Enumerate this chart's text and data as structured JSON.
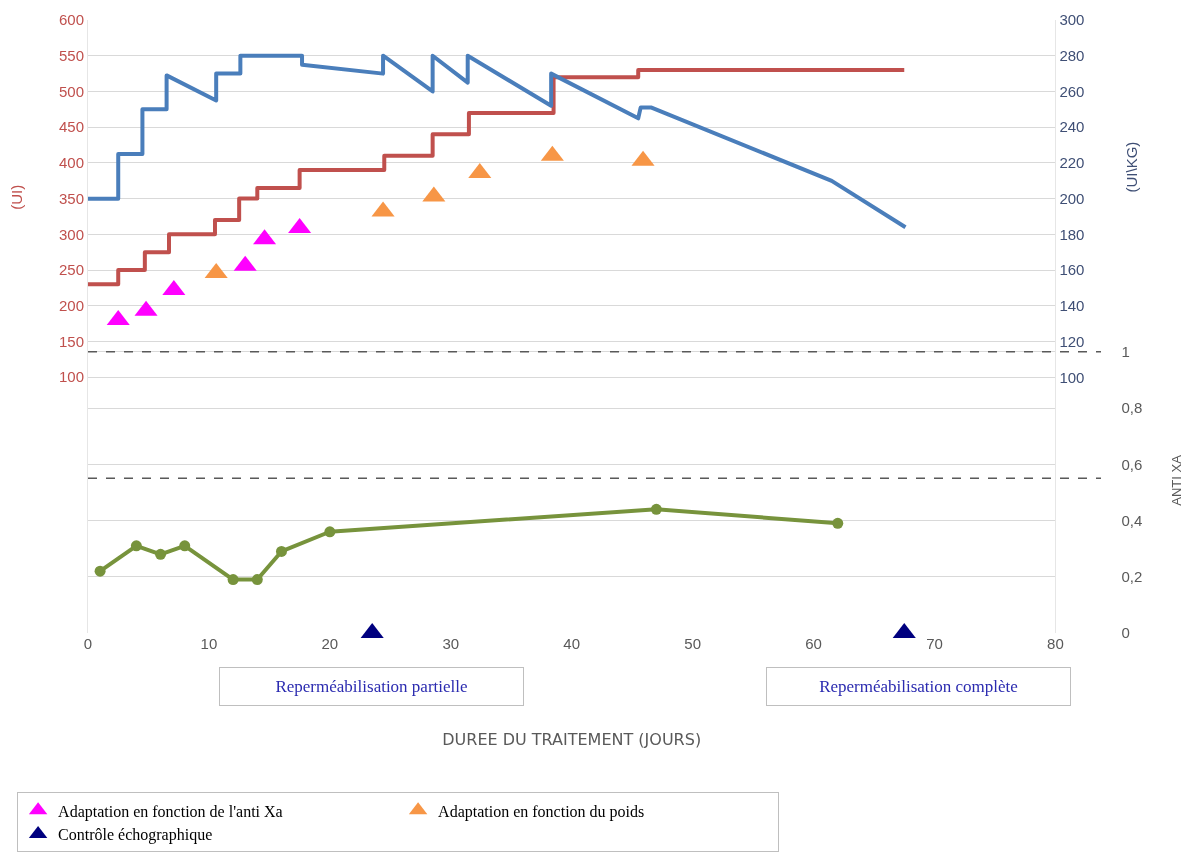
{
  "chart_data": {
    "type": "line",
    "xlabel": "DUREE DU TRAITEMENT (JOURS)",
    "ylabel": "(UI)",
    "y2label": "(UI\\KG)",
    "y3label": "ANTI XA",
    "xlim": [
      0,
      80
    ],
    "xticks": [
      0,
      10,
      20,
      30,
      40,
      50,
      60,
      70,
      80
    ],
    "ylim": [
      -258,
      600
    ],
    "yticks": [
      100,
      150,
      200,
      250,
      300,
      350,
      400,
      450,
      500,
      550,
      600
    ],
    "y2lim": [
      -43,
      300
    ],
    "y2ticks": [
      100,
      120,
      140,
      160,
      180,
      200,
      220,
      240,
      260,
      280,
      300
    ],
    "y3lim": [
      0,
      2.18
    ],
    "y3ticks": [
      0,
      {
        "value": 0.2,
        "label": "0,2"
      },
      {
        "value": 0.4,
        "label": "0,4"
      },
      {
        "value": 0.6,
        "label": "0,6"
      },
      {
        "value": 0.8,
        "label": "0,8"
      },
      1
    ],
    "grid": "y",
    "legend": "bottom",
    "series": [
      {
        "type": "step",
        "color": "#c0504d",
        "x": [
          0,
          2.5,
          4.7,
          6.7,
          10.5,
          12.5,
          14,
          17.5,
          24.5,
          28.5,
          31.5,
          38.5,
          45.5,
          67.5
        ],
        "values": [
          230,
          250,
          275,
          300,
          320,
          350,
          365,
          390,
          410,
          440,
          470,
          520,
          530,
          530
        ]
      },
      {
        "axis": "y2",
        "color": "#4a7ebb",
        "x": [
          0,
          2.5,
          2.5,
          4.5,
          4.5,
          6.5,
          6.5,
          10.6,
          10.6,
          12.6,
          12.6,
          17.7,
          17.7,
          24.4,
          24.4,
          28.5,
          28.5,
          31.4,
          31.4,
          38.3,
          38.3,
          45.5,
          45.7,
          46.6,
          61.5,
          67.6
        ],
        "values": [
          200,
          200,
          225,
          225,
          250,
          250,
          269,
          255,
          270,
          270,
          280,
          280,
          275,
          270,
          280,
          260,
          280,
          265,
          280,
          252,
          270,
          245,
          251,
          251,
          210,
          184
        ]
      },
      {
        "axis": "y3",
        "color": "#77933c",
        "marker": "circle",
        "x": [
          1,
          4,
          6,
          8,
          12,
          14,
          16,
          20,
          47,
          62
        ],
        "values": [
          0.22,
          0.31,
          0.28,
          0.31,
          0.19,
          0.19,
          0.29,
          0.36,
          0.44,
          0.39
        ]
      },
      {
        "type": "scatter",
        "name": "Adaptation en fonction de l'anti Xa",
        "color": "#ff00ff",
        "marker": "triangle",
        "x": [
          2.5,
          4.8,
          7.1,
          13.0,
          14.6,
          17.5
        ],
        "values": [
          180,
          193,
          222,
          256,
          293,
          309
        ]
      },
      {
        "type": "scatter",
        "name": "Adaptation en fonction du poids",
        "color": "#f79646",
        "marker": "triangle",
        "x": [
          10.6,
          24.4,
          28.6,
          32.4,
          38.4,
          45.9
        ],
        "values": [
          246,
          332,
          353,
          386,
          410,
          403
        ]
      },
      {
        "type": "scatter",
        "axis": "y3",
        "name": "Contrôle échographique",
        "color": "#00007f",
        "marker": "triangle",
        "x": [
          23.5,
          67.5
        ],
        "values": [
          0,
          0
        ]
      }
    ],
    "ref_lines": [
      {
        "axis": "y3",
        "value": 1,
        "color": "#595959",
        "line_style": "dashed"
      },
      {
        "axis": "y3",
        "value": 0.55,
        "color": "#595959",
        "line_style": "dashed"
      }
    ],
    "annotations": [
      "Reperméabilisation partielle",
      "Reperméabilisation complète"
    ]
  }
}
